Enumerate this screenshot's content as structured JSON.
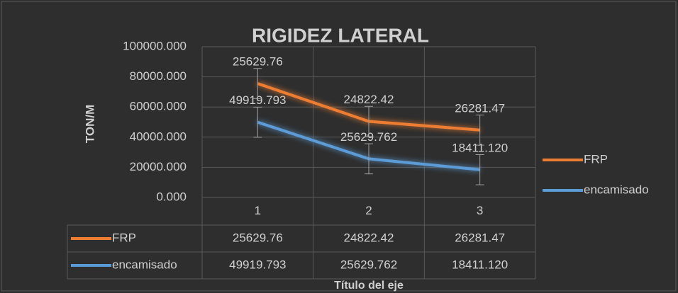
{
  "chart_data": {
    "type": "line",
    "stacked": true,
    "title": "RIGIDEZ LATERAL",
    "x_label": "Título del eje",
    "y_label": "TON/M",
    "categories": [
      "1",
      "2",
      "3"
    ],
    "series": [
      {
        "name": "FRP",
        "color": "#ed7d31",
        "values": [
          25629.76,
          24822.42,
          26281.47
        ],
        "error": 10000
      },
      {
        "name": "encamisado",
        "color": "#5b9bd5",
        "values": [
          49919.793,
          25629.762,
          18411.12
        ],
        "value_labels": [
          "49919.793",
          "25629.762",
          "18411.120"
        ],
        "error": 10000
      }
    ],
    "ylim": [
      0,
      100000
    ],
    "yticks": [
      {
        "value": 0,
        "label": "0.000"
      },
      {
        "value": 20000,
        "label": "20000.000"
      },
      {
        "value": 40000,
        "label": "40000.000"
      },
      {
        "value": 60000,
        "label": "60000.000"
      },
      {
        "value": 80000,
        "label": "80000.000"
      },
      {
        "value": 100000,
        "label": "100000.000"
      }
    ],
    "grid": true,
    "legend": "right",
    "data_table": true
  }
}
